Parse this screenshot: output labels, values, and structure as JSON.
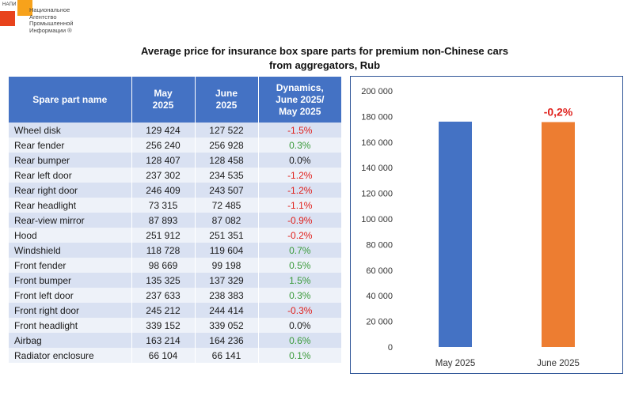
{
  "logo": {
    "abbr": "НАПИ",
    "lines": [
      "Национальное",
      "Агентство",
      "Промышленной",
      "Информации ®"
    ]
  },
  "title_line1": "Average price for insurance box spare parts for premium non-Chinese cars",
  "title_line2": "from aggregators, Rub",
  "table": {
    "headers": [
      "Spare part name",
      "May\n2025",
      "June\n2025",
      "Dynamics,\nJune 2025/\nMay 2025"
    ],
    "rows": [
      {
        "name": "Wheel disk",
        "may": "129 424",
        "june": "127 522",
        "dyn": "-1.5%",
        "sign": "neg"
      },
      {
        "name": "Rear fender",
        "may": "256 240",
        "june": "256 928",
        "dyn": "0.3%",
        "sign": "pos"
      },
      {
        "name": "Rear bumper",
        "may": "128 407",
        "june": "128 458",
        "dyn": "0.0%",
        "sign": "zero"
      },
      {
        "name": "Rear left door",
        "may": "237 302",
        "june": "234 535",
        "dyn": "-1.2%",
        "sign": "neg"
      },
      {
        "name": "Rear right door",
        "may": "246 409",
        "june": "243 507",
        "dyn": "-1.2%",
        "sign": "neg"
      },
      {
        "name": "Rear headlight",
        "may": "73 315",
        "june": "72 485",
        "dyn": "-1.1%",
        "sign": "neg"
      },
      {
        "name": "Rear-view mirror",
        "may": "87 893",
        "june": "87 082",
        "dyn": "-0.9%",
        "sign": "neg"
      },
      {
        "name": "Hood",
        "may": "251 912",
        "june": "251 351",
        "dyn": "-0.2%",
        "sign": "neg"
      },
      {
        "name": "Windshield",
        "may": "118 728",
        "june": "119 604",
        "dyn": "0.7%",
        "sign": "pos"
      },
      {
        "name": "Front fender",
        "may": "98 669",
        "june": "99 198",
        "dyn": "0.5%",
        "sign": "pos"
      },
      {
        "name": "Front bumper",
        "may": "135 325",
        "june": "137 329",
        "dyn": "1.5%",
        "sign": "pos"
      },
      {
        "name": "Front left door",
        "may": "237 633",
        "june": "238 383",
        "dyn": "0.3%",
        "sign": "pos"
      },
      {
        "name": "Front right door",
        "may": "245 212",
        "june": "244 414",
        "dyn": "-0.3%",
        "sign": "neg"
      },
      {
        "name": "Front headlight",
        "may": "339 152",
        "june": "339 052",
        "dyn": "0.0%",
        "sign": "zero"
      },
      {
        "name": "Airbag",
        "may": "163 214",
        "june": "164 236",
        "dyn": "0.6%",
        "sign": "pos"
      },
      {
        "name": "Radiator enclosure",
        "may": "66 104",
        "june": "66 141",
        "dyn": "0.1%",
        "sign": "pos"
      }
    ]
  },
  "chart_data": {
    "type": "bar",
    "title": "",
    "xlabel": "",
    "ylabel": "",
    "categories": [
      "May 2025",
      "June 2025"
    ],
    "values": [
      176000,
      175650
    ],
    "colors": [
      "#4472c4",
      "#ed7d31"
    ],
    "ylim": [
      0,
      200000
    ],
    "ytick_values": [
      0,
      20000,
      40000,
      60000,
      80000,
      100000,
      120000,
      140000,
      160000,
      180000,
      200000
    ],
    "ytick_labels": [
      "0",
      "20 000",
      "40 000",
      "60 000",
      "80 000",
      "100 000",
      "120 000",
      "140 000",
      "160 000",
      "180 000",
      "200 000"
    ],
    "annotation": "-0,2%",
    "annotation_color": "#e0201b",
    "grid": false,
    "legend": "none"
  }
}
